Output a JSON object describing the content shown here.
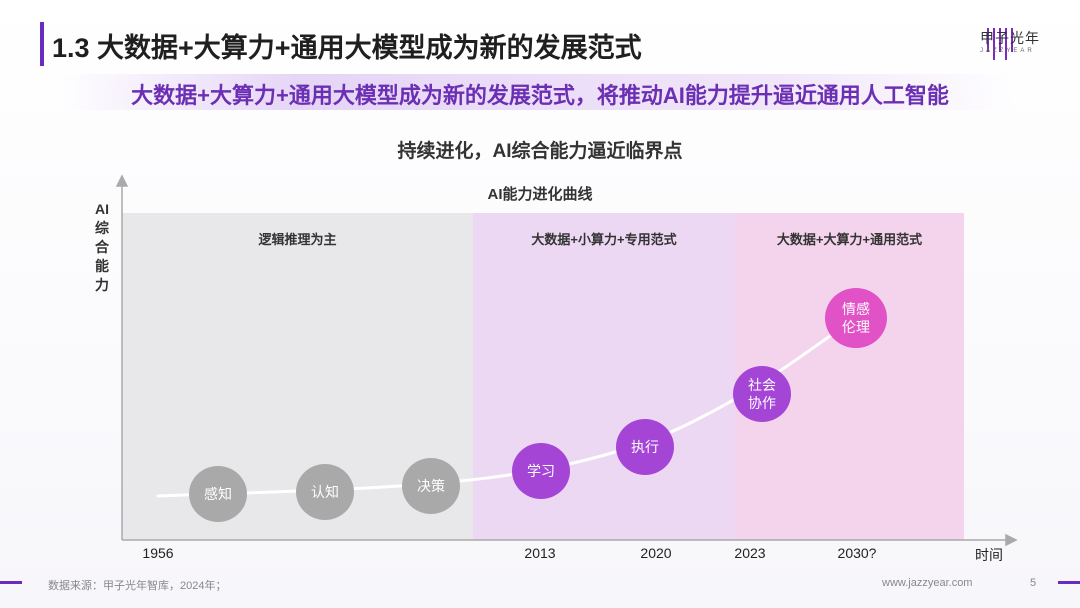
{
  "header": {
    "title": "1.3 大数据+大算力+通用大模型成为新的发展范式",
    "logo_text": "甲子光年",
    "logo_sub": "JAZZYEAR"
  },
  "subtitle": "大数据+大算力+通用大模型成为新的发展范式，将推动AI能力提升逼近通用人工智能",
  "sub_heading": "持续进化，AI综合能力逼近临界点",
  "chart": {
    "title": "AI能力进化曲线",
    "y_axis_label": "AI综合能力",
    "x_axis_label": "时间",
    "zones": [
      {
        "label": "逻辑推理为主"
      },
      {
        "label": "大数据+小算力+专用范式"
      },
      {
        "label": "大数据+大算力+通用范式"
      }
    ],
    "x_ticks": [
      "1956",
      "2013",
      "2020",
      "2023",
      "2030?"
    ],
    "nodes": [
      {
        "line1": "感知",
        "line2": ""
      },
      {
        "line1": "认知",
        "line2": ""
      },
      {
        "line1": "决策",
        "line2": ""
      },
      {
        "line1": "学习",
        "line2": ""
      },
      {
        "line1": "执行",
        "line2": ""
      },
      {
        "line1": "社会",
        "line2": "协作"
      },
      {
        "line1": "情感",
        "line2": "伦理"
      }
    ]
  },
  "footer": {
    "source": "数据来源：甲子光年智库，2024年；",
    "site": "www.jazzyear.com",
    "page": "5"
  },
  "colors": {
    "accent": "#6a2bbf",
    "subtitle": "#6b2fb3",
    "node_grey": "#a9a9a9",
    "node_purple": "#a445d6",
    "node_magenta": "#e052c6"
  }
}
